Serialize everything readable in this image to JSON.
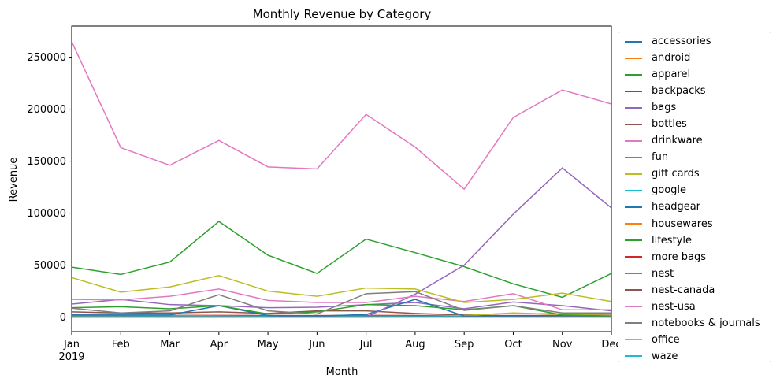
{
  "chart_data": {
    "type": "line",
    "title": "Monthly Revenue by Category",
    "xlabel": "Month",
    "ylabel": "Revenue",
    "categories": [
      "Jan",
      "Feb",
      "Mar",
      "Apr",
      "May",
      "Jun",
      "Jul",
      "Aug",
      "Sep",
      "Oct",
      "Nov",
      "Dec"
    ],
    "year_label": "2019",
    "ylim": [
      -14000,
      280000
    ],
    "yticks": [
      0,
      50000,
      100000,
      150000,
      200000,
      250000
    ],
    "ytick_labels": [
      "0",
      "50000",
      "100000",
      "150000",
      "200000",
      "250000"
    ],
    "grid": false,
    "legend_position": "outside-right",
    "series": [
      {
        "name": "accessories",
        "color": "#1f77b4",
        "values": [
          1500,
          1200,
          1100,
          1000,
          900,
          800,
          1000,
          900,
          800,
          900,
          1000,
          900
        ]
      },
      {
        "name": "android",
        "color": "#ff7f0e",
        "values": [
          500,
          400,
          400,
          400,
          300,
          300,
          300,
          300,
          300,
          300,
          400,
          300
        ]
      },
      {
        "name": "apparel",
        "color": "#2ca02c",
        "values": [
          48000,
          41000,
          53000,
          92000,
          59500,
          42000,
          75000,
          62000,
          48500,
          32000,
          19000,
          42000
        ]
      },
      {
        "name": "backpacks",
        "color": "#d62728",
        "values": [
          2000,
          1800,
          1600,
          1600,
          1500,
          1400,
          1600,
          1500,
          1400,
          1400,
          1500,
          1400
        ]
      },
      {
        "name": "bags",
        "color": "#9467bd",
        "values": [
          12500,
          17000,
          12000,
          11000,
          9000,
          9500,
          12000,
          14000,
          8000,
          14500,
          11000,
          6000
        ]
      },
      {
        "name": "bottles",
        "color": "#8c564b",
        "values": [
          5000,
          4000,
          4000,
          5000,
          3500,
          6000,
          6000,
          3500,
          2000,
          3500,
          3000,
          3000
        ]
      },
      {
        "name": "drinkware",
        "color": "#e377c2",
        "values": [
          265000,
          163000,
          146000,
          170000,
          144500,
          142500,
          195000,
          163500,
          123000,
          192000,
          218500,
          205000
        ]
      },
      {
        "name": "fun",
        "color": "#7f7f7f",
        "values": [
          1000,
          900,
          900,
          1000,
          800,
          800,
          900,
          800,
          700,
          800,
          900,
          800
        ]
      },
      {
        "name": "gift cards",
        "color": "#bcbd22",
        "values": [
          500,
          500,
          400,
          500,
          400,
          400,
          500,
          400,
          1500,
          4000,
          2500,
          1500
        ]
      },
      {
        "name": "google",
        "color": "#17becf",
        "values": [
          1000,
          900,
          1500,
          1200,
          700,
          600,
          800,
          700,
          600,
          700,
          800,
          700
        ]
      },
      {
        "name": "headgear",
        "color": "#1f77b4",
        "values": [
          2000,
          2000,
          2000,
          11000,
          1500,
          1000,
          2500,
          17000,
          1000,
          1000,
          1000,
          1000
        ]
      },
      {
        "name": "housewares",
        "color": "#ff7f0e",
        "values": [
          300,
          300,
          200,
          300,
          200,
          200,
          300,
          200,
          200,
          200,
          300,
          200
        ]
      },
      {
        "name": "lifestyle",
        "color": "#2ca02c",
        "values": [
          9000,
          10000,
          8000,
          11000,
          3000,
          5000,
          12000,
          11000,
          7000,
          11000,
          2000,
          1000
        ]
      },
      {
        "name": "more bags",
        "color": "#d62728",
        "values": [
          200,
          200,
          200,
          200,
          200,
          200,
          200,
          200,
          200,
          200,
          200,
          200
        ]
      },
      {
        "name": "nest",
        "color": "#9467bd",
        "values": [
          0,
          0,
          0,
          0,
          0,
          0,
          0,
          22000,
          50000,
          99000,
          143500,
          105000
        ]
      },
      {
        "name": "nest-canada",
        "color": "#8c564b",
        "values": [
          0,
          0,
          0,
          0,
          0,
          0,
          0,
          0,
          0,
          0,
          0,
          0
        ]
      },
      {
        "name": "nest-usa",
        "color": "#e377c2",
        "values": [
          17000,
          16500,
          20000,
          27000,
          16000,
          14000,
          14000,
          20000,
          15000,
          22500,
          7000,
          7000
        ]
      },
      {
        "name": "notebooks & journals",
        "color": "#7f7f7f",
        "values": [
          8500,
          4000,
          6000,
          21500,
          6000,
          3000,
          22500,
          24500,
          6500,
          11000,
          4000,
          4000
        ]
      },
      {
        "name": "office",
        "color": "#bcbd22",
        "values": [
          38000,
          24000,
          29000,
          40000,
          25000,
          20000,
          28000,
          27000,
          14000,
          17000,
          23000,
          15000
        ]
      },
      {
        "name": "waze",
        "color": "#17becf",
        "values": [
          0,
          0,
          0,
          0,
          0,
          0,
          0,
          0,
          0,
          0,
          0,
          0
        ]
      }
    ]
  }
}
